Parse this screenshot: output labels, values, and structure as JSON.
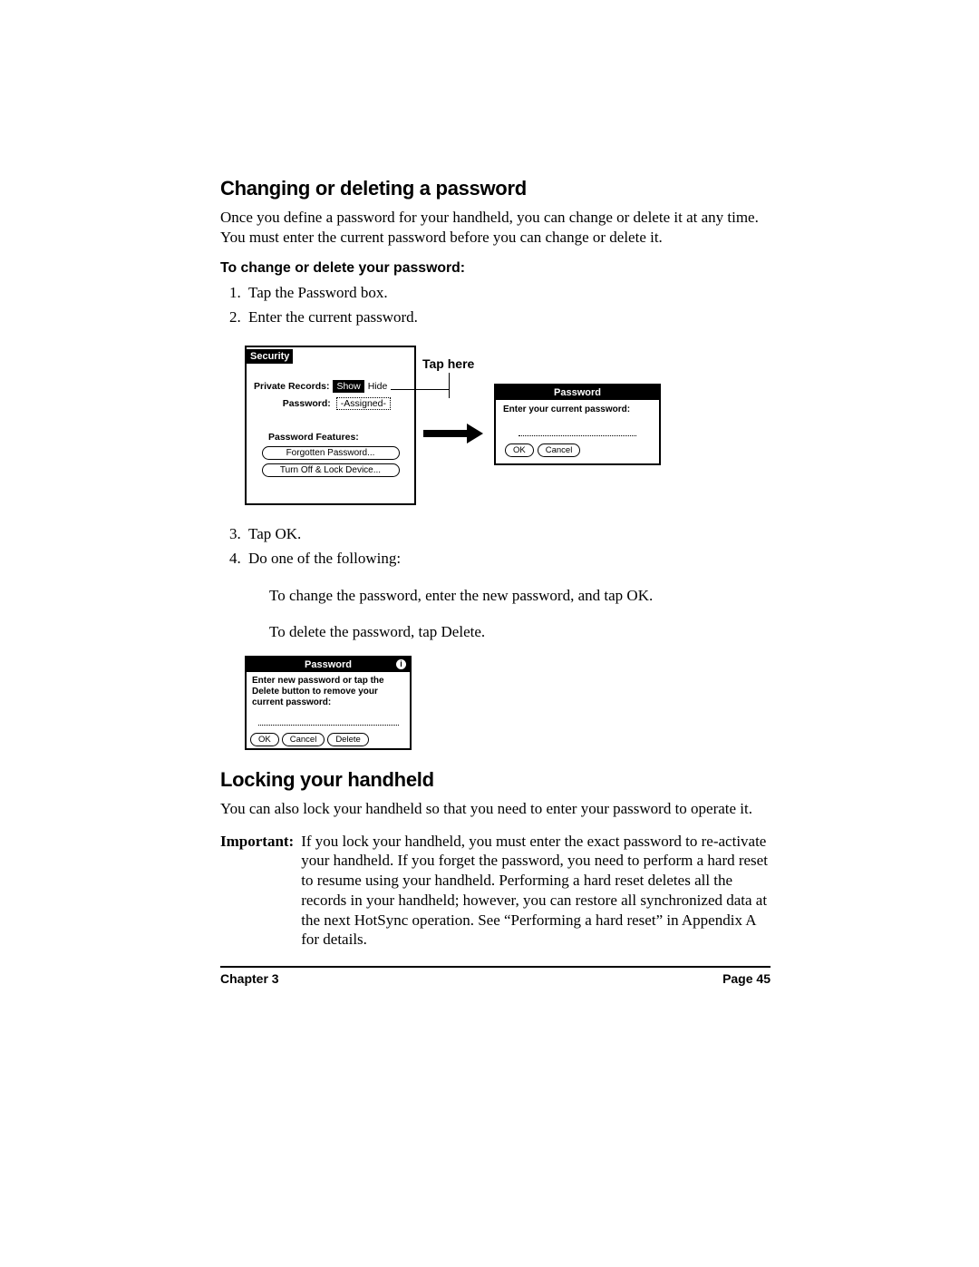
{
  "heading1": "Changing or deleting a password",
  "intro1": "Once you define a password for your handheld, you can change or delete it at any time. You must enter the current password before you can change or delete it.",
  "subhead1": "To change or delete your password:",
  "steps_a": [
    "Tap the Password box.",
    "Enter the current password."
  ],
  "fig1": {
    "tap_here": "Tap here",
    "security": {
      "title": "Security",
      "private_records_label": "Private Records:",
      "show": "Show",
      "hide": "Hide",
      "password_label": "Password:",
      "assigned": "-Assigned-",
      "features_label": "Password Features:",
      "forgotten_btn": "Forgotten Password...",
      "turnoff_btn": "Turn Off & Lock Device..."
    },
    "dialog": {
      "title": "Password",
      "prompt": "Enter your current password:",
      "ok": "OK",
      "cancel": "Cancel"
    }
  },
  "steps_b": [
    "Tap OK.",
    "Do one of the following:"
  ],
  "sub1": "To change the password, enter the new password, and tap OK.",
  "sub2": "To delete the password, tap Delete.",
  "fig2": {
    "title": "Password",
    "prompt": "Enter new password or tap the Delete button to remove your current password:",
    "ok": "OK",
    "cancel": "Cancel",
    "delete": "Delete"
  },
  "heading2": "Locking your handheld",
  "intro2": "You can also lock your handheld so that you need to enter your password to operate it.",
  "important_label": "Important:",
  "important_text": "If you lock your handheld, you must enter the exact password to re-activate your handheld. If you forget the password, you need to perform a hard reset to resume using your handheld. Performing a hard reset deletes all the records in your handheld; however, you can restore all synchronized data at the next HotSync operation. See “Performing a hard reset” in Appendix A for details.",
  "footer": {
    "chapter": "Chapter 3",
    "page": "Page 45"
  },
  "colors": {
    "fg": "#000000",
    "bg": "#ffffff"
  }
}
